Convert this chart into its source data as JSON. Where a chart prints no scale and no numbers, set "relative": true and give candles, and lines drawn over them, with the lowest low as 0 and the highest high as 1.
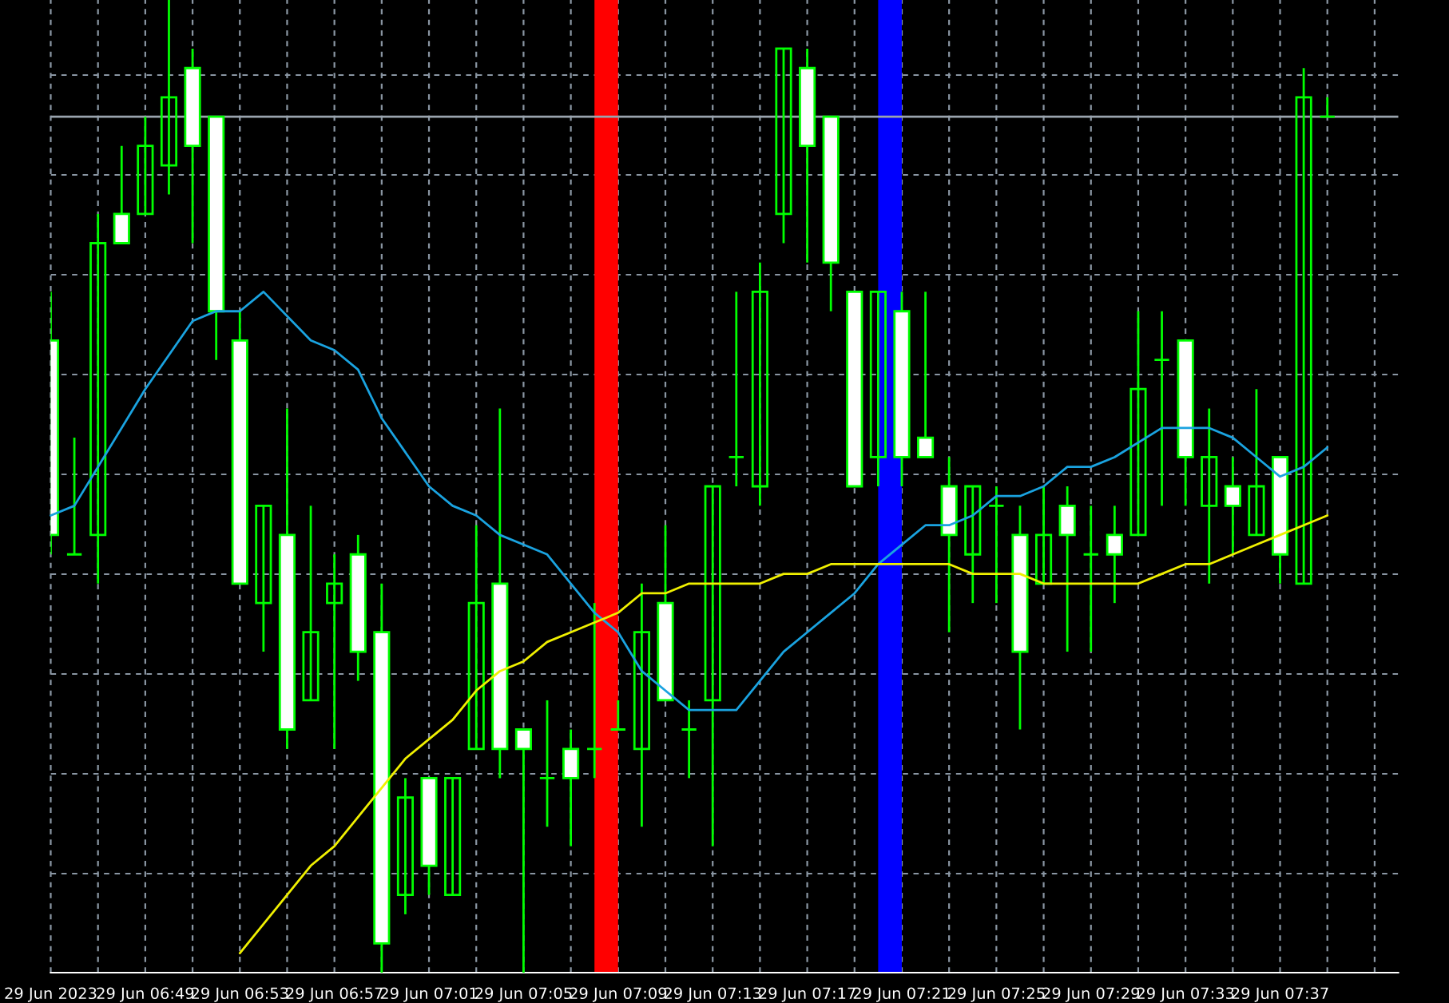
{
  "chart_data": {
    "type": "candlestick",
    "relative": true,
    "x": [
      "2023-06-29T06:45",
      "2023-06-29T06:46",
      "2023-06-29T06:47",
      "2023-06-29T06:48",
      "2023-06-29T06:49",
      "2023-06-29T06:50",
      "2023-06-29T06:51",
      "2023-06-29T06:52",
      "2023-06-29T06:53",
      "2023-06-29T06:54",
      "2023-06-29T06:55",
      "2023-06-29T06:56",
      "2023-06-29T06:57",
      "2023-06-29T06:58",
      "2023-06-29T06:59",
      "2023-06-29T07:00",
      "2023-06-29T07:01",
      "2023-06-29T07:02",
      "2023-06-29T07:03",
      "2023-06-29T07:04",
      "2023-06-29T07:05",
      "2023-06-29T07:06",
      "2023-06-29T07:07",
      "2023-06-29T07:08",
      "2023-06-29T07:09",
      "2023-06-29T07:10",
      "2023-06-29T07:11",
      "2023-06-29T07:12",
      "2023-06-29T07:13",
      "2023-06-29T07:14",
      "2023-06-29T07:15",
      "2023-06-29T07:16",
      "2023-06-29T07:17",
      "2023-06-29T07:18",
      "2023-06-29T07:19",
      "2023-06-29T07:20",
      "2023-06-29T07:21",
      "2023-06-29T07:22",
      "2023-06-29T07:23",
      "2023-06-29T07:24",
      "2023-06-29T07:25",
      "2023-06-29T07:26",
      "2023-06-29T07:27",
      "2023-06-29T07:28",
      "2023-06-29T07:29",
      "2023-06-29T07:30",
      "2023-06-29T07:31",
      "2023-06-29T07:32",
      "2023-06-29T07:33",
      "2023-06-29T07:34",
      "2023-06-29T07:35",
      "2023-06-29T07:36",
      "2023-06-29T07:37",
      "2023-06-29T07:38",
      "2023-06-29T07:39"
    ],
    "ohlc": [
      [
        0.65,
        0.7,
        0.43,
        0.45
      ],
      [
        0.43,
        0.55,
        0.43,
        0.43
      ],
      [
        0.45,
        0.78,
        0.4,
        0.75
      ],
      [
        0.78,
        0.85,
        0.75,
        0.75
      ],
      [
        0.78,
        0.88,
        0.78,
        0.85
      ],
      [
        0.83,
        1.0,
        0.8,
        0.9
      ],
      [
        0.93,
        0.95,
        0.75,
        0.85
      ],
      [
        0.88,
        0.88,
        0.63,
        0.68
      ],
      [
        0.65,
        0.68,
        0.4,
        0.4
      ],
      [
        0.38,
        0.48,
        0.33,
        0.48
      ],
      [
        0.45,
        0.58,
        0.23,
        0.25
      ],
      [
        0.28,
        0.48,
        0.28,
        0.35
      ],
      [
        0.38,
        0.43,
        0.23,
        0.4
      ],
      [
        0.43,
        0.45,
        0.3,
        0.33
      ],
      [
        0.35,
        0.4,
        0.0,
        0.03
      ],
      [
        0.08,
        0.2,
        0.06,
        0.18
      ],
      [
        0.2,
        0.2,
        0.08,
        0.11
      ],
      [
        0.08,
        0.2,
        0.08,
        0.2
      ],
      [
        0.23,
        0.46,
        0.23,
        0.38
      ],
      [
        0.4,
        0.58,
        0.2,
        0.23
      ],
      [
        0.25,
        0.25,
        0.0,
        0.23
      ],
      [
        0.2,
        0.28,
        0.15,
        0.2
      ],
      [
        0.23,
        0.25,
        0.13,
        0.2
      ],
      [
        0.23,
        0.38,
        0.2,
        0.23
      ],
      [
        0.25,
        0.28,
        0.25,
        0.25
      ],
      [
        0.23,
        0.4,
        0.15,
        0.35
      ],
      [
        0.38,
        0.46,
        0.28,
        0.28
      ],
      [
        0.25,
        0.28,
        0.2,
        0.25
      ],
      [
        0.28,
        0.5,
        0.13,
        0.5
      ],
      [
        0.53,
        0.7,
        0.5,
        0.53
      ],
      [
        0.5,
        0.73,
        0.48,
        0.7
      ],
      [
        0.78,
        0.95,
        0.75,
        0.95
      ],
      [
        0.93,
        0.95,
        0.73,
        0.85
      ],
      [
        0.88,
        0.88,
        0.68,
        0.73
      ],
      [
        0.7,
        0.7,
        0.5,
        0.5
      ],
      [
        0.53,
        0.7,
        0.5,
        0.7
      ],
      [
        0.68,
        0.7,
        0.5,
        0.53
      ],
      [
        0.55,
        0.7,
        0.53,
        0.53
      ],
      [
        0.5,
        0.53,
        0.35,
        0.45
      ],
      [
        0.43,
        0.5,
        0.38,
        0.5
      ],
      [
        0.48,
        0.5,
        0.38,
        0.48
      ],
      [
        0.45,
        0.48,
        0.25,
        0.33
      ],
      [
        0.4,
        0.5,
        0.4,
        0.45
      ],
      [
        0.48,
        0.5,
        0.33,
        0.45
      ],
      [
        0.43,
        0.48,
        0.33,
        0.43
      ],
      [
        0.45,
        0.48,
        0.38,
        0.43
      ],
      [
        0.45,
        0.68,
        0.45,
        0.6
      ],
      [
        0.63,
        0.68,
        0.48,
        0.63
      ],
      [
        0.65,
        0.65,
        0.48,
        0.53
      ],
      [
        0.48,
        0.58,
        0.4,
        0.53
      ],
      [
        0.5,
        0.53,
        0.43,
        0.48
      ],
      [
        0.45,
        0.6,
        0.45,
        0.5
      ],
      [
        0.53,
        0.53,
        0.4,
        0.43
      ],
      [
        0.4,
        0.93,
        0.4,
        0.9
      ],
      [
        0.88,
        0.9,
        0.88,
        0.88
      ]
    ],
    "series": [
      {
        "type": "line",
        "color": "#1aa3e0",
        "x": [
          "2023-06-29T06:45",
          "2023-06-29T06:46",
          "2023-06-29T06:49",
          "2023-06-29T06:51",
          "2023-06-29T06:52",
          "2023-06-29T06:53",
          "2023-06-29T06:54",
          "2023-06-29T06:56",
          "2023-06-29T06:57",
          "2023-06-29T06:58",
          "2023-06-29T06:59",
          "2023-06-29T07:01",
          "2023-06-29T07:02",
          "2023-06-29T07:03",
          "2023-06-29T07:04",
          "2023-06-29T07:05",
          "2023-06-29T07:06",
          "2023-06-29T07:07",
          "2023-06-29T07:08",
          "2023-06-29T07:09",
          "2023-06-29T07:10",
          "2023-06-29T07:11",
          "2023-06-29T07:12",
          "2023-06-29T07:13",
          "2023-06-29T07:14",
          "2023-06-29T07:15",
          "2023-06-29T07:16",
          "2023-06-29T07:17",
          "2023-06-29T07:18",
          "2023-06-29T07:19",
          "2023-06-29T07:20",
          "2023-06-29T07:21",
          "2023-06-29T07:22",
          "2023-06-29T07:23",
          "2023-06-29T07:24",
          "2023-06-29T07:25",
          "2023-06-29T07:26",
          "2023-06-29T07:27",
          "2023-06-29T07:28",
          "2023-06-29T07:29",
          "2023-06-29T07:30",
          "2023-06-29T07:32",
          "2023-06-29T07:33",
          "2023-06-29T07:34",
          "2023-06-29T07:35",
          "2023-06-29T07:36",
          "2023-06-29T07:37",
          "2023-06-29T07:38",
          "2023-06-29T07:39"
        ],
        "values": [
          0.47,
          0.48,
          0.6,
          0.67,
          0.68,
          0.68,
          0.7,
          0.65,
          0.64,
          0.62,
          0.57,
          0.5,
          0.48,
          0.47,
          0.45,
          0.44,
          0.43,
          0.4,
          0.37,
          0.35,
          0.31,
          0.29,
          0.27,
          0.27,
          0.27,
          0.3,
          0.33,
          0.35,
          0.37,
          0.39,
          0.42,
          0.44,
          0.46,
          0.46,
          0.47,
          0.49,
          0.49,
          0.5,
          0.52,
          0.52,
          0.53,
          0.56,
          0.56,
          0.56,
          0.55,
          0.53,
          0.51,
          0.52,
          0.54
        ]
      },
      {
        "type": "line",
        "color": "#f0f000",
        "x": [
          "2023-06-29T06:53",
          "2023-06-29T06:54",
          "2023-06-29T06:55",
          "2023-06-29T06:56",
          "2023-06-29T06:57",
          "2023-06-29T06:58",
          "2023-06-29T06:59",
          "2023-06-29T07:00",
          "2023-06-29T07:01",
          "2023-06-29T07:02",
          "2023-06-29T07:03",
          "2023-06-29T07:04",
          "2023-06-29T07:05",
          "2023-06-29T07:06",
          "2023-06-29T07:07",
          "2023-06-29T07:08",
          "2023-06-29T07:09",
          "2023-06-29T07:10",
          "2023-06-29T07:11",
          "2023-06-29T07:12",
          "2023-06-29T07:13",
          "2023-06-29T07:14",
          "2023-06-29T07:15",
          "2023-06-29T07:16",
          "2023-06-29T07:17",
          "2023-06-29T07:18",
          "2023-06-29T07:19",
          "2023-06-29T07:20",
          "2023-06-29T07:21",
          "2023-06-29T07:22",
          "2023-06-29T07:23",
          "2023-06-29T07:24",
          "2023-06-29T07:25",
          "2023-06-29T07:26",
          "2023-06-29T07:27",
          "2023-06-29T07:28",
          "2023-06-29T07:29",
          "2023-06-29T07:30",
          "2023-06-29T07:31",
          "2023-06-29T07:32",
          "2023-06-29T07:33",
          "2023-06-29T07:34",
          "2023-06-29T07:35",
          "2023-06-29T07:36",
          "2023-06-29T07:37",
          "2023-06-29T07:38",
          "2023-06-29T07:39"
        ],
        "values": [
          0.02,
          0.05,
          0.08,
          0.11,
          0.13,
          0.16,
          0.19,
          0.22,
          0.24,
          0.26,
          0.29,
          0.31,
          0.32,
          0.34,
          0.35,
          0.36,
          0.37,
          0.39,
          0.39,
          0.4,
          0.4,
          0.4,
          0.4,
          0.41,
          0.41,
          0.42,
          0.42,
          0.42,
          0.42,
          0.42,
          0.42,
          0.41,
          0.41,
          0.41,
          0.4,
          0.4,
          0.4,
          0.4,
          0.4,
          0.41,
          0.42,
          0.42,
          0.43,
          0.44,
          0.45,
          0.46,
          0.47
        ]
      }
    ],
    "bands": [
      {
        "axis": "x",
        "from": "2023-06-29T07:08",
        "to": "2023-06-29T07:09",
        "color": "#ff0000"
      },
      {
        "axis": "x",
        "from": "2023-06-29T07:20",
        "to": "2023-06-29T07:21",
        "color": "#0000ff"
      }
    ],
    "ref_lines": [
      {
        "axis": "y",
        "value": 0.88,
        "color": "#9aa4ae"
      }
    ],
    "xlim": [
      "2023-06-29T06:45",
      "2023-06-29T07:42"
    ],
    "xticks": [
      {
        "value": "2023-06-29T06:45",
        "label": "29 Jun 2023"
      },
      {
        "value": "2023-06-29T06:47",
        "label": null
      },
      {
        "value": "2023-06-29T06:49",
        "label": "29 Jun 06:49"
      },
      {
        "value": "2023-06-29T06:51",
        "label": null
      },
      {
        "value": "2023-06-29T06:53",
        "label": "29 Jun 06:53"
      },
      {
        "value": "2023-06-29T06:55",
        "label": null
      },
      {
        "value": "2023-06-29T06:57",
        "label": "29 Jun 06:57"
      },
      {
        "value": "2023-06-29T06:59",
        "label": null
      },
      {
        "value": "2023-06-29T07:01",
        "label": "29 Jun 07:01"
      },
      {
        "value": "2023-06-29T07:03",
        "label": null
      },
      {
        "value": "2023-06-29T07:05",
        "label": "29 Jun 07:05"
      },
      {
        "value": "2023-06-29T07:07",
        "label": null
      },
      {
        "value": "2023-06-29T07:09",
        "label": "29 Jun 07:09"
      },
      {
        "value": "2023-06-29T07:11",
        "label": null
      },
      {
        "value": "2023-06-29T07:13",
        "label": "29 Jun 07:13"
      },
      {
        "value": "2023-06-29T07:15",
        "label": null
      },
      {
        "value": "2023-06-29T07:17",
        "label": "29 Jun 07:17"
      },
      {
        "value": "2023-06-29T07:19",
        "label": null
      },
      {
        "value": "2023-06-29T07:21",
        "label": "29 Jun 07:21"
      },
      {
        "value": "2023-06-29T07:23",
        "label": null
      },
      {
        "value": "2023-06-29T07:25",
        "label": "29 Jun 07:25"
      },
      {
        "value": "2023-06-29T07:27",
        "label": null
      },
      {
        "value": "2023-06-29T07:29",
        "label": "29 Jun 07:29"
      },
      {
        "value": "2023-06-29T07:31",
        "label": null
      },
      {
        "value": "2023-06-29T07:33",
        "label": "29 Jun 07:33"
      },
      {
        "value": "2023-06-29T07:35",
        "label": null
      },
      {
        "value": "2023-06-29T07:37",
        "label": "29 Jun 07:37"
      },
      {
        "value": "2023-06-29T07:39",
        "label": null
      },
      {
        "value": "2023-06-29T07:41",
        "label": null
      }
    ],
    "grid": true,
    "tick_labels": "x"
  }
}
